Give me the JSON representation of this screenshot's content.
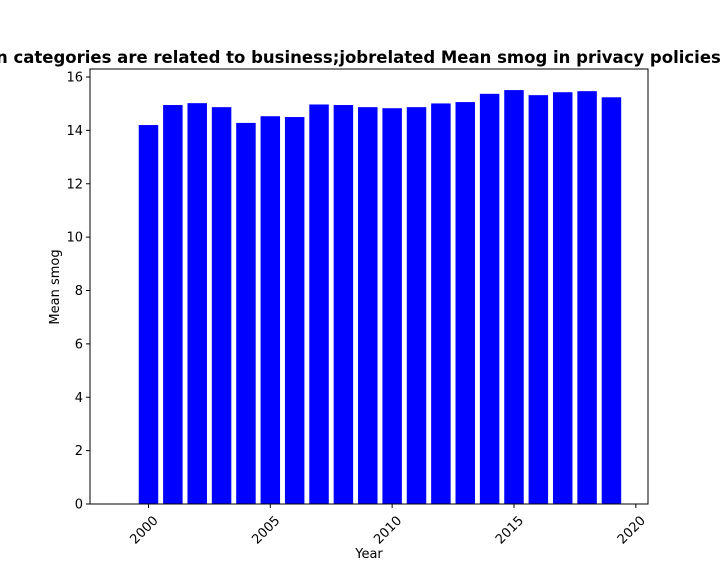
{
  "chart_data": {
    "type": "bar",
    "title": "n categories are related to business;jobrelated Mean smog in privacy policies b",
    "xlabel": "Year",
    "ylabel": "Mean smog",
    "x": [
      2000,
      2001,
      2002,
      2003,
      2004,
      2005,
      2006,
      2007,
      2008,
      2009,
      2010,
      2011,
      2012,
      2013,
      2014,
      2015,
      2016,
      2017,
      2018,
      2019
    ],
    "values": [
      14.2,
      14.95,
      15.02,
      14.87,
      14.28,
      14.53,
      14.5,
      14.97,
      14.95,
      14.87,
      14.83,
      14.87,
      15.01,
      15.06,
      15.37,
      15.51,
      15.32,
      15.43,
      15.47,
      15.24
    ],
    "xlim": [
      1997.6,
      2020.5
    ],
    "ylim": [
      0,
      16.3
    ],
    "xticks": [
      2000,
      2005,
      2010,
      2015,
      2020
    ],
    "yticks": [
      0,
      2,
      4,
      6,
      8,
      10,
      12,
      14,
      16
    ],
    "bar_color": "#0000ff",
    "grid": false,
    "legend": "none"
  }
}
